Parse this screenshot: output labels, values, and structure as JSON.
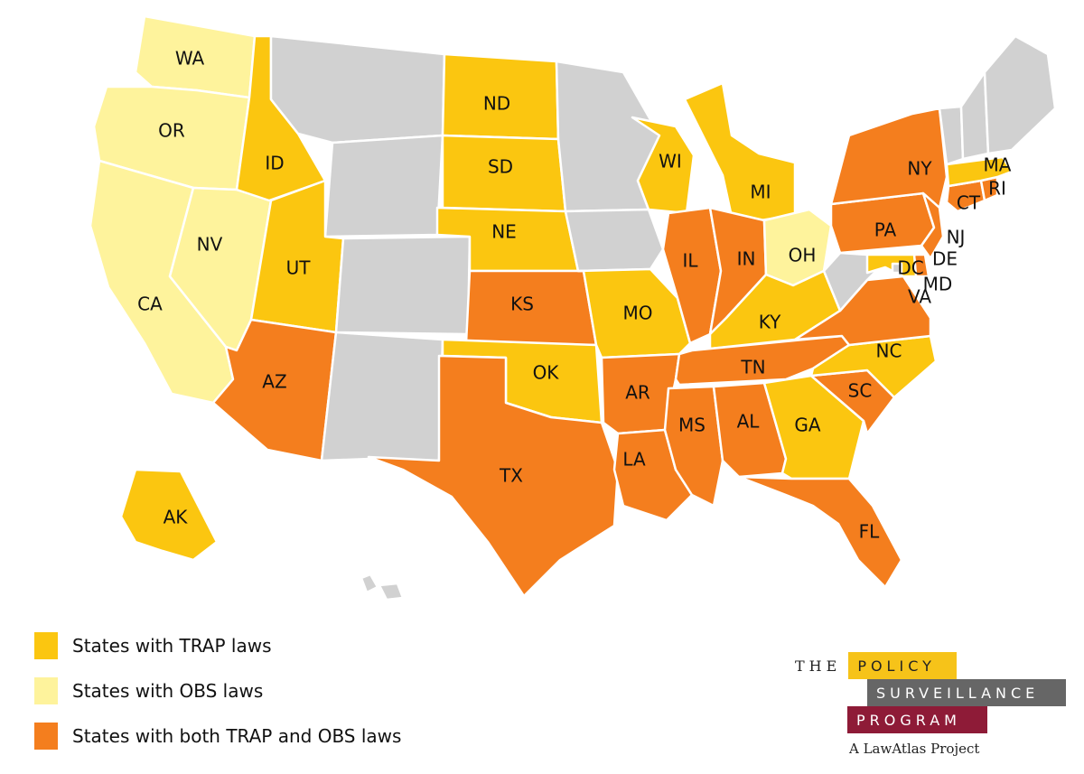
{
  "colors": {
    "trap": "#fbc610",
    "obs": "#fef39c",
    "both": "#f47e1e",
    "none": "#d1d1d1"
  },
  "states": [
    {
      "code": "WA",
      "status": "obs"
    },
    {
      "code": "OR",
      "status": "obs"
    },
    {
      "code": "CA",
      "status": "obs"
    },
    {
      "code": "NV",
      "status": "obs"
    },
    {
      "code": "ID",
      "status": "trap"
    },
    {
      "code": "MT",
      "status": "none"
    },
    {
      "code": "WY",
      "status": "none"
    },
    {
      "code": "UT",
      "status": "trap"
    },
    {
      "code": "CO",
      "status": "none"
    },
    {
      "code": "AZ",
      "status": "both"
    },
    {
      "code": "NM",
      "status": "none"
    },
    {
      "code": "ND",
      "status": "trap"
    },
    {
      "code": "SD",
      "status": "trap"
    },
    {
      "code": "NE",
      "status": "trap"
    },
    {
      "code": "KS",
      "status": "both"
    },
    {
      "code": "OK",
      "status": "trap"
    },
    {
      "code": "TX",
      "status": "both"
    },
    {
      "code": "MN",
      "status": "none"
    },
    {
      "code": "IA",
      "status": "none"
    },
    {
      "code": "MO",
      "status": "trap"
    },
    {
      "code": "AR",
      "status": "both"
    },
    {
      "code": "LA",
      "status": "both"
    },
    {
      "code": "WI",
      "status": "trap"
    },
    {
      "code": "IL",
      "status": "both"
    },
    {
      "code": "MI",
      "status": "trap"
    },
    {
      "code": "IN",
      "status": "both"
    },
    {
      "code": "OH",
      "status": "obs"
    },
    {
      "code": "KY",
      "status": "trap"
    },
    {
      "code": "TN",
      "status": "both"
    },
    {
      "code": "MS",
      "status": "both"
    },
    {
      "code": "AL",
      "status": "both"
    },
    {
      "code": "GA",
      "status": "trap"
    },
    {
      "code": "FL",
      "status": "both"
    },
    {
      "code": "SC",
      "status": "both"
    },
    {
      "code": "NC",
      "status": "trap"
    },
    {
      "code": "VA",
      "status": "both"
    },
    {
      "code": "WV",
      "status": "none"
    },
    {
      "code": "PA",
      "status": "both"
    },
    {
      "code": "NY",
      "status": "both"
    },
    {
      "code": "NJ",
      "status": "both"
    },
    {
      "code": "DE",
      "status": "both"
    },
    {
      "code": "MD",
      "status": "trap"
    },
    {
      "code": "DC",
      "status": "none"
    },
    {
      "code": "CT",
      "status": "both"
    },
    {
      "code": "RI",
      "status": "both"
    },
    {
      "code": "MA",
      "status": "trap"
    },
    {
      "code": "VT",
      "status": "none"
    },
    {
      "code": "NH",
      "status": "none"
    },
    {
      "code": "ME",
      "status": "none"
    },
    {
      "code": "AK",
      "status": "trap"
    },
    {
      "code": "HI",
      "status": "none"
    }
  ],
  "labels": [
    "WA",
    "OR",
    "CA",
    "NV",
    "ID",
    "UT",
    "AZ",
    "ND",
    "SD",
    "NE",
    "KS",
    "OK",
    "TX",
    "MO",
    "AR",
    "LA",
    "WI",
    "IL",
    "MI",
    "IN",
    "OH",
    "KY",
    "TN",
    "MS",
    "AL",
    "GA",
    "FL",
    "SC",
    "NC",
    "VA",
    "PA",
    "NY",
    "NJ",
    "DE",
    "MD",
    "DC",
    "CT",
    "RI",
    "MA",
    "AK"
  ],
  "legend": [
    {
      "label": "States with TRAP laws",
      "color": "#fbc610"
    },
    {
      "label": "States with OBS laws",
      "color": "#fef39c"
    },
    {
      "label": "States with both TRAP and OBS laws",
      "color": "#f47e1e"
    }
  ],
  "brand": {
    "the": "THE",
    "policy": "POLICY",
    "surveillance": "SURVEILLANCE",
    "program": "PROGRAM",
    "tagline": "A LawAtlas Project"
  }
}
